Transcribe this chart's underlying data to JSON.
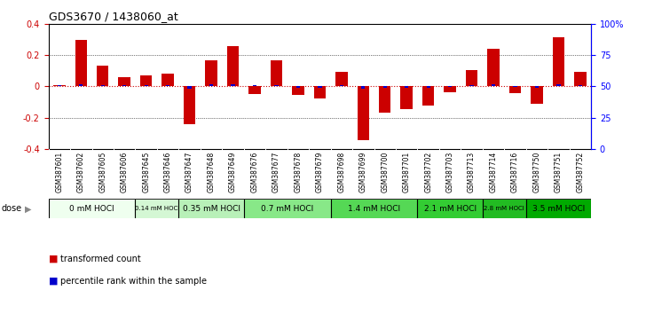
{
  "title": "GDS3670 / 1438060_at",
  "samples": [
    "GSM387601",
    "GSM387602",
    "GSM387605",
    "GSM387606",
    "GSM387645",
    "GSM387646",
    "GSM387647",
    "GSM387648",
    "GSM387649",
    "GSM387676",
    "GSM387677",
    "GSM387678",
    "GSM387679",
    "GSM387698",
    "GSM387699",
    "GSM387700",
    "GSM387701",
    "GSM387702",
    "GSM387703",
    "GSM387713",
    "GSM387714",
    "GSM387716",
    "GSM387750",
    "GSM387751",
    "GSM387752"
  ],
  "red_values": [
    0.01,
    0.295,
    0.13,
    0.06,
    0.07,
    0.08,
    -0.24,
    0.165,
    0.255,
    -0.05,
    0.165,
    -0.055,
    -0.075,
    0.09,
    -0.345,
    -0.17,
    -0.145,
    -0.12,
    -0.04,
    0.105,
    0.24,
    -0.045,
    -0.11,
    0.31,
    0.09
  ],
  "blue_values": [
    0.005,
    0.015,
    0.005,
    0.005,
    0.005,
    0.005,
    -0.015,
    0.015,
    0.015,
    0.005,
    0.008,
    -0.008,
    -0.008,
    0.005,
    -0.015,
    -0.008,
    -0.008,
    -0.008,
    -0.005,
    0.008,
    0.015,
    -0.005,
    -0.008,
    0.015,
    0.008
  ],
  "dose_groups": [
    {
      "label": "0 mM HOCl",
      "start": 0,
      "end": 4,
      "color": "#efffef"
    },
    {
      "label": "0.14 mM HOCl",
      "start": 4,
      "end": 6,
      "color": "#d4f7d4"
    },
    {
      "label": "0.35 mM HOCl",
      "start": 6,
      "end": 9,
      "color": "#b8f0b8"
    },
    {
      "label": "0.7 mM HOCl",
      "start": 9,
      "end": 13,
      "color": "#88e888"
    },
    {
      "label": "1.4 mM HOCl",
      "start": 13,
      "end": 17,
      "color": "#55d855"
    },
    {
      "label": "2.1 mM HOCl",
      "start": 17,
      "end": 20,
      "color": "#33cc33"
    },
    {
      "label": "2.8 mM HOCl",
      "start": 20,
      "end": 22,
      "color": "#22bb22"
    },
    {
      "label": "3.5 mM HOCl",
      "start": 22,
      "end": 25,
      "color": "#00aa00"
    }
  ],
  "ylim": [
    -0.4,
    0.4
  ],
  "right_yticks": [
    0,
    25,
    50,
    75,
    100
  ],
  "right_ylabels": [
    "0",
    "25",
    "50",
    "75",
    "100%"
  ],
  "bar_width": 0.55,
  "red_color": "#cc0000",
  "blue_color": "#0000cc",
  "bg_color": "#ffffff",
  "plot_bg": "#ffffff",
  "zero_line_color": "#cc0000",
  "sample_bg": "#cccccc",
  "ytick_color": "#cc0000"
}
